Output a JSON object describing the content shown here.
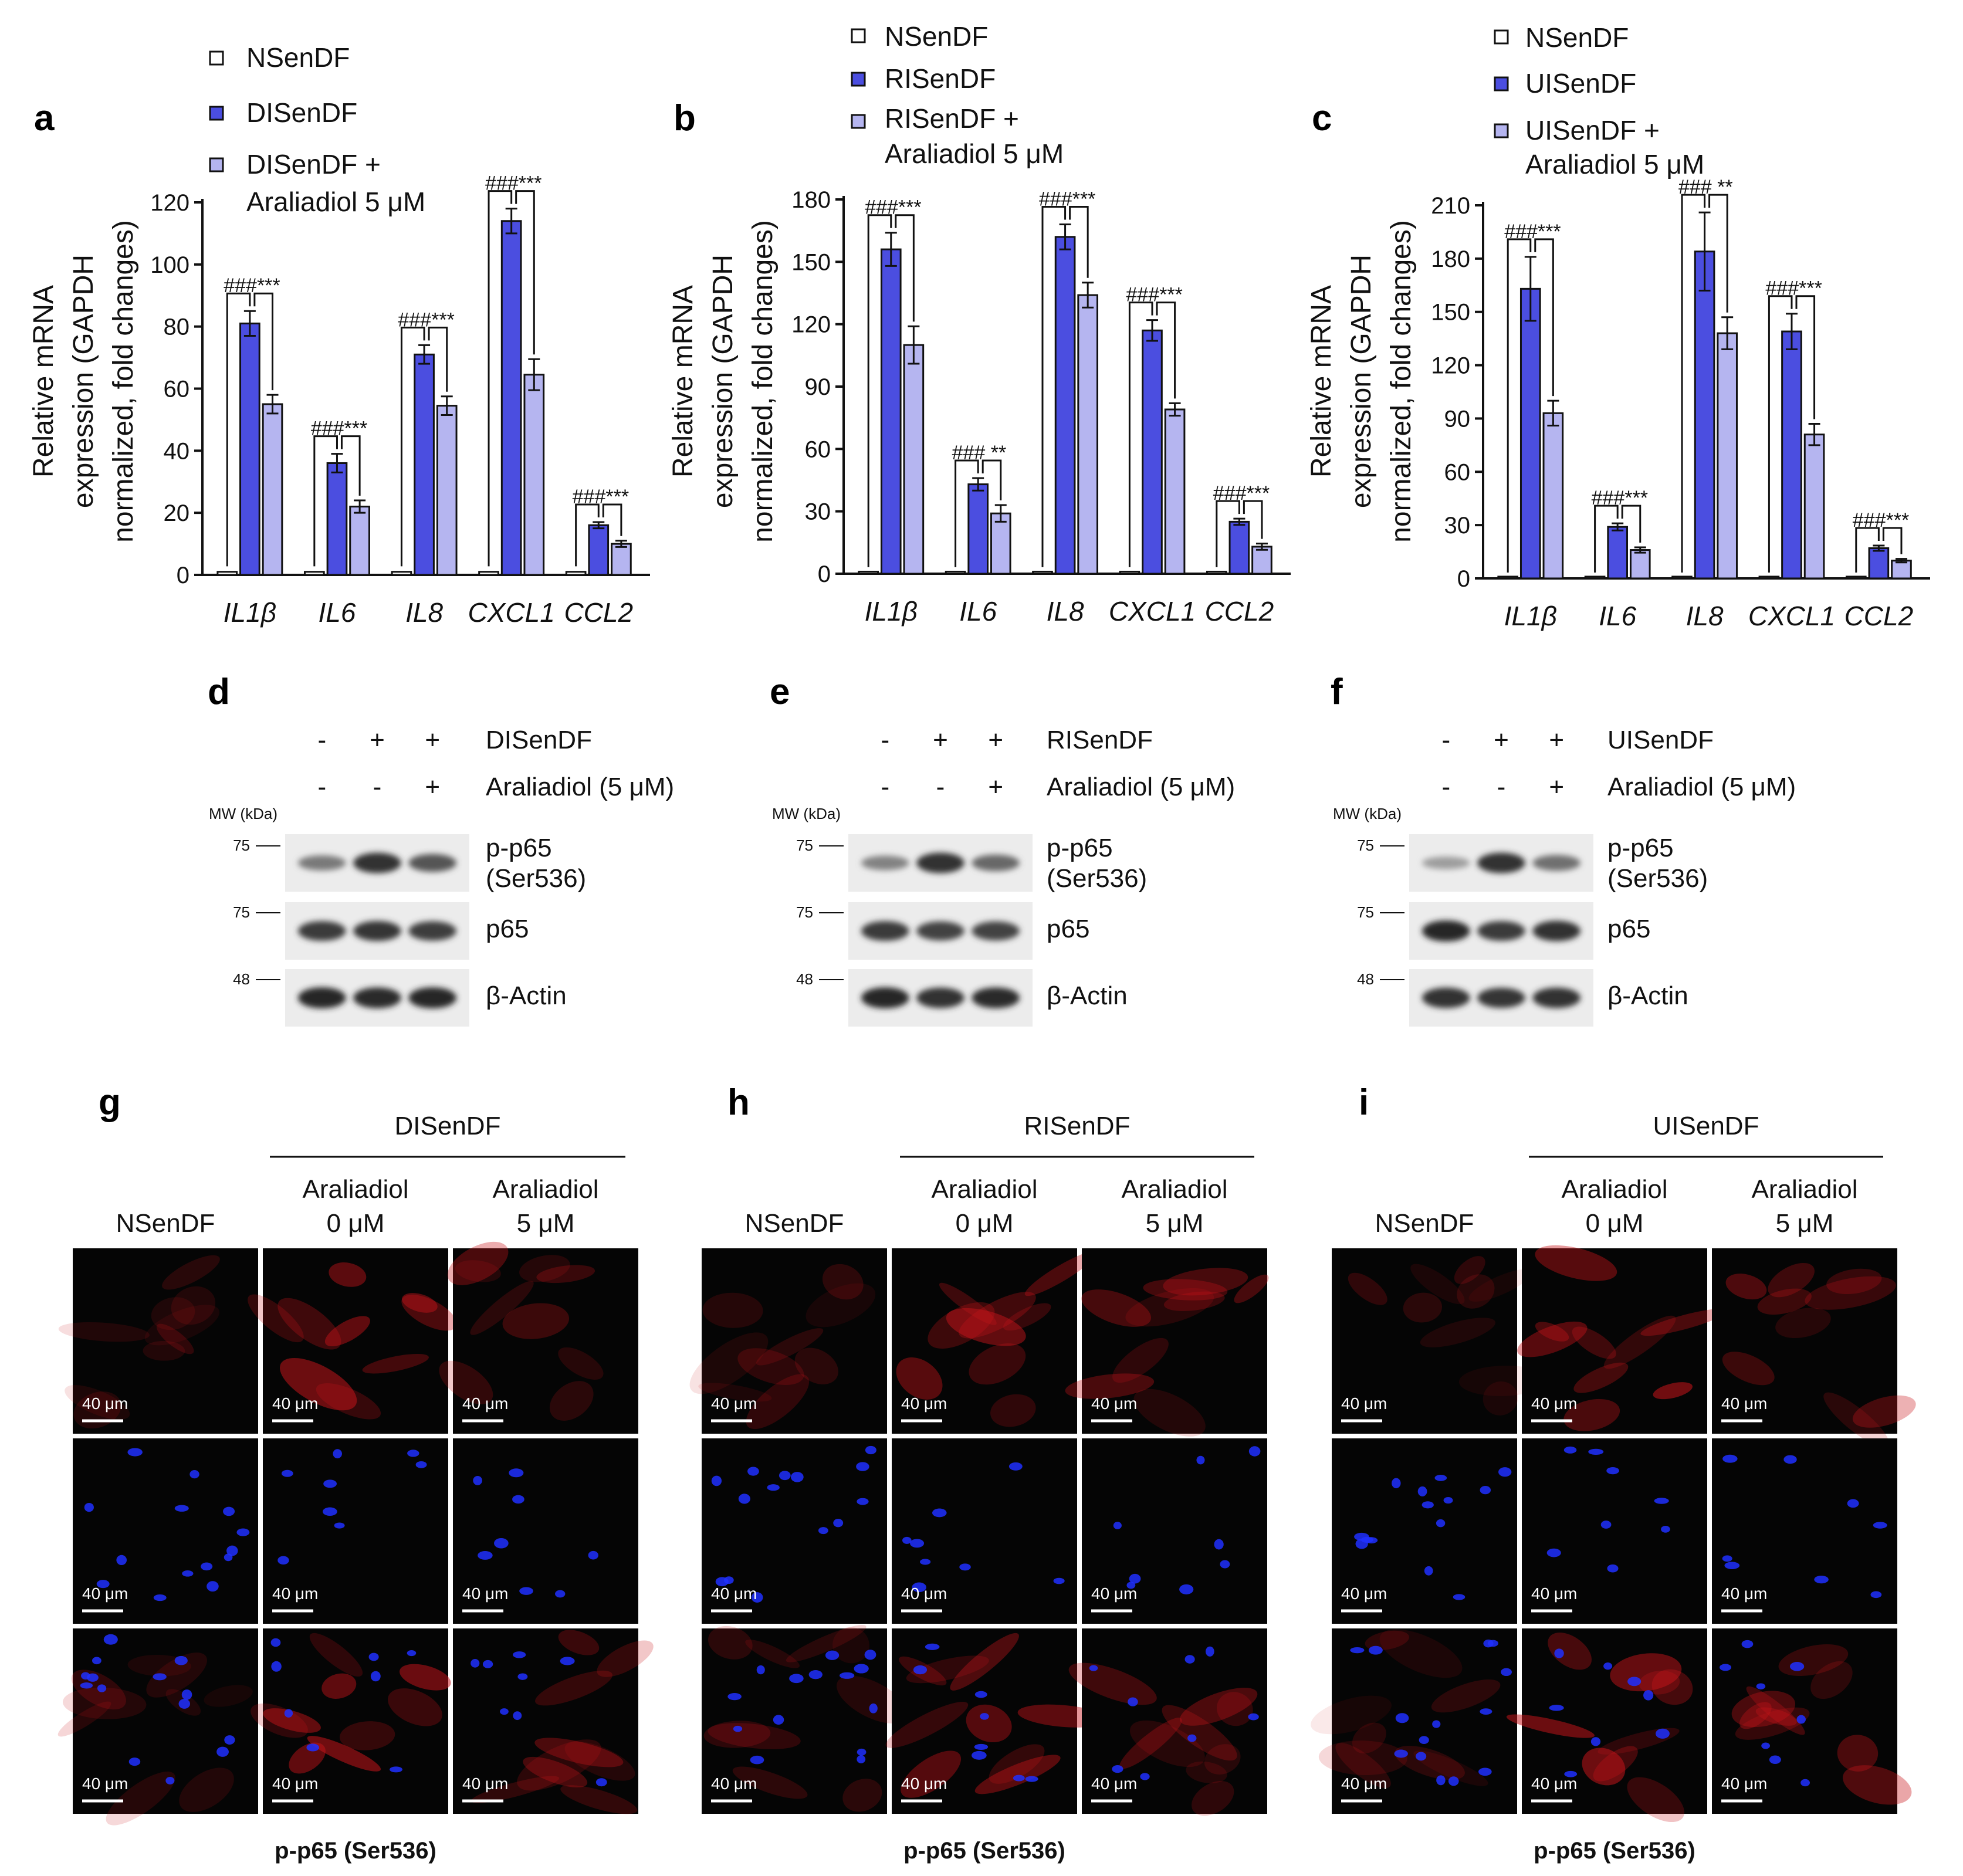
{
  "colors": {
    "nsendf": "#ffffff",
    "senescent": "#4b4ee0",
    "araliadiol": "#b5b5f0",
    "red_stain": "#c8141a",
    "blue_stain": "#2030ff"
  },
  "chart_data": [
    {
      "panel": "a",
      "type": "bar",
      "categories": [
        "IL1β",
        "IL6",
        "IL8",
        "CXCL1",
        "CCL2"
      ],
      "ylabel_lines": [
        "Relative mRNA",
        "expression (GAPDH",
        "normalized, fold changes)"
      ],
      "ylim": [
        0,
        120
      ],
      "yticks": [
        0,
        20,
        40,
        60,
        80,
        100,
        120
      ],
      "series": [
        {
          "name": "NSenDF",
          "values": [
            1,
            1,
            1,
            1,
            1
          ],
          "errors": [
            0,
            0,
            0,
            0,
            0
          ]
        },
        {
          "name": "DISenDF",
          "values": [
            81,
            36,
            71,
            114,
            16
          ],
          "errors": [
            4,
            3,
            3,
            4,
            1
          ]
        },
        {
          "name": "DISenDF + Araliadiol 5 μM",
          "values": [
            55,
            22,
            54.5,
            64.5,
            10
          ],
          "errors": [
            3,
            2,
            3,
            5,
            1
          ]
        }
      ],
      "annotations": [
        {
          "category": "IL1β",
          "text": "###***"
        },
        {
          "category": "IL6",
          "text": "###***"
        },
        {
          "category": "IL8",
          "text": "###***"
        },
        {
          "category": "CXCL1",
          "text": "###***"
        },
        {
          "category": "CCL2",
          "text": "###***"
        }
      ],
      "legend": [
        "NSenDF",
        "DISenDF",
        "DISenDF +",
        "Araliadiol 5 μM"
      ]
    },
    {
      "panel": "b",
      "type": "bar",
      "categories": [
        "IL1β",
        "IL6",
        "IL8",
        "CXCL1",
        "CCL2"
      ],
      "ylabel_lines": [
        "Relative mRNA",
        "expression (GAPDH",
        "normalized, fold changes)"
      ],
      "ylim": [
        0,
        180
      ],
      "yticks": [
        0,
        30,
        60,
        90,
        120,
        150,
        180
      ],
      "series": [
        {
          "name": "NSenDF",
          "values": [
            1,
            1,
            1,
            1,
            1
          ],
          "errors": [
            0,
            0,
            0,
            0,
            0
          ]
        },
        {
          "name": "RISenDF",
          "values": [
            156,
            43,
            162,
            117,
            25
          ],
          "errors": [
            8,
            3,
            6,
            5,
            1.5
          ]
        },
        {
          "name": "RISenDF + Araliadiol 5 μM",
          "values": [
            110,
            29,
            134,
            79,
            13
          ],
          "errors": [
            9,
            4,
            6,
            3,
            1.5
          ]
        }
      ],
      "annotations": [
        {
          "category": "IL1β",
          "text": "###***"
        },
        {
          "category": "IL6",
          "text": "### **"
        },
        {
          "category": "IL8",
          "text": "###***"
        },
        {
          "category": "CXCL1",
          "text": "###***"
        },
        {
          "category": "CCL2",
          "text": "###***"
        }
      ],
      "legend": [
        "NSenDF",
        "RISenDF",
        "RISenDF +",
        "Araliadiol 5 μM"
      ]
    },
    {
      "panel": "c",
      "type": "bar",
      "categories": [
        "IL1β",
        "IL6",
        "IL8",
        "CXCL1",
        "CCL2"
      ],
      "ylabel_lines": [
        "Relative mRNA",
        "expression (GAPDH",
        "normalized, fold changes)"
      ],
      "ylim": [
        0,
        210
      ],
      "yticks": [
        0,
        30,
        60,
        90,
        120,
        150,
        180,
        210
      ],
      "series": [
        {
          "name": "NSenDF",
          "values": [
            1,
            1,
            1,
            1,
            1
          ],
          "errors": [
            0,
            0,
            0,
            0,
            0
          ]
        },
        {
          "name": "UISenDF",
          "values": [
            163,
            29,
            184,
            139,
            17
          ],
          "errors": [
            18,
            2,
            22,
            10,
            1.5
          ]
        },
        {
          "name": "UISenDF + Araliadiol 5 μM",
          "values": [
            93,
            16,
            138,
            81,
            10
          ],
          "errors": [
            7,
            1.5,
            9,
            6,
            1
          ]
        }
      ],
      "annotations": [
        {
          "category": "IL1β",
          "text": "###***"
        },
        {
          "category": "IL6",
          "text": "###***"
        },
        {
          "category": "IL8",
          "text": "### **"
        },
        {
          "category": "CXCL1",
          "text": "###***"
        },
        {
          "category": "CCL2",
          "text": "###***"
        }
      ],
      "legend": [
        "NSenDF",
        "UISenDF",
        "UISenDF +",
        "Araliadiol 5 μM"
      ]
    }
  ],
  "western": [
    {
      "panel": "d",
      "row1": [
        "-",
        "+",
        "+"
      ],
      "row1_label": "DISenDF",
      "row2": [
        "-",
        "-",
        "+"
      ],
      "row2_label": "Araliadiol (5 μM)",
      "mw_title": "MW (kDa)",
      "blots": [
        {
          "mw": "75",
          "label1": "p-p65",
          "label2": "(Ser536)",
          "intensities": [
            0.55,
            0.95,
            0.75
          ]
        },
        {
          "mw": "75",
          "label1": "p65",
          "label2": "",
          "intensities": [
            0.9,
            0.92,
            0.88
          ]
        },
        {
          "mw": "48",
          "label1": "β-Actin",
          "label2": "",
          "intensities": [
            1.0,
            0.98,
            1.0
          ]
        }
      ]
    },
    {
      "panel": "e",
      "row1": [
        "-",
        "+",
        "+"
      ],
      "row1_label": "RISenDF",
      "row2": [
        "-",
        "-",
        "+"
      ],
      "row2_label": "Araliadiol (5 μM)",
      "mw_title": "MW (kDa)",
      "blots": [
        {
          "mw": "75",
          "label1": "p-p65",
          "label2": "(Ser536)",
          "intensities": [
            0.5,
            0.95,
            0.65
          ]
        },
        {
          "mw": "75",
          "label1": "p65",
          "label2": "",
          "intensities": [
            0.9,
            0.85,
            0.85
          ]
        },
        {
          "mw": "48",
          "label1": "β-Actin",
          "label2": "",
          "intensities": [
            1.0,
            0.95,
            0.98
          ]
        }
      ]
    },
    {
      "panel": "f",
      "row1": [
        "-",
        "+",
        "+"
      ],
      "row1_label": "UISenDF",
      "row2": [
        "-",
        "-",
        "+"
      ],
      "row2_label": "Araliadiol (5 μM)",
      "mw_title": "MW (kDa)",
      "blots": [
        {
          "mw": "75",
          "label1": "p-p65",
          "label2": "(Ser536)",
          "intensities": [
            0.35,
            0.95,
            0.6
          ]
        },
        {
          "mw": "75",
          "label1": "p65",
          "label2": "",
          "intensities": [
            1.0,
            0.9,
            0.95
          ]
        },
        {
          "mw": "48",
          "label1": "β-Actin",
          "label2": "",
          "intensities": [
            0.95,
            0.92,
            0.95
          ]
        }
      ]
    }
  ],
  "immuno": [
    {
      "panel": "g",
      "group": "DISenDF",
      "columns": [
        [
          "",
          "NSenDF"
        ],
        [
          "Araliadiol",
          "0 μM"
        ],
        [
          "Araliadiol",
          "5 μM"
        ]
      ],
      "scale_bar": "40 μm",
      "caption": "p-p65 (Ser536)"
    },
    {
      "panel": "h",
      "group": "RISenDF",
      "columns": [
        [
          "",
          "NSenDF"
        ],
        [
          "Araliadiol",
          "0 μM"
        ],
        [
          "Araliadiol",
          "5 μM"
        ]
      ],
      "scale_bar": "40 μm",
      "caption": "p-p65 (Ser536)"
    },
    {
      "panel": "i",
      "group": "UISenDF",
      "columns": [
        [
          "",
          "NSenDF"
        ],
        [
          "Araliadiol",
          "0 μM"
        ],
        [
          "Araliadiol",
          "5 μM"
        ]
      ],
      "scale_bar": "40 μm",
      "caption": "p-p65 (Ser536)"
    }
  ]
}
